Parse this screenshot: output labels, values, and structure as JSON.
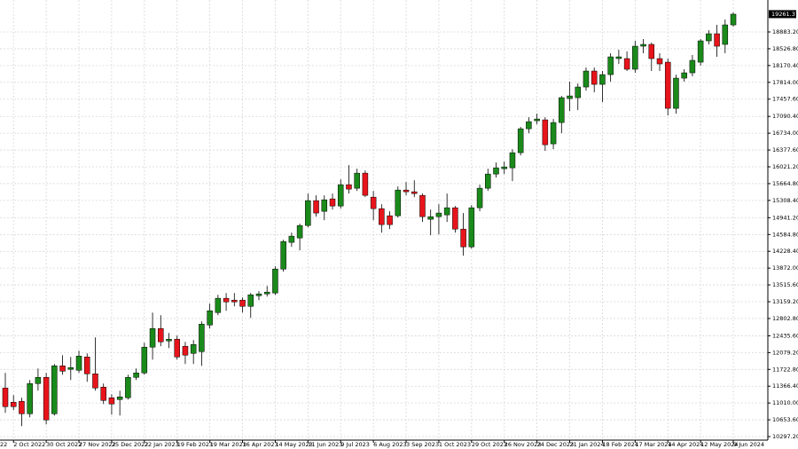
{
  "chart_data": {
    "type": "candlestick",
    "partial_label": "22",
    "categories": [
      null,
      "2 Oct 2022",
      null,
      null,
      null,
      "30 Oct 2022",
      null,
      null,
      null,
      "27 Nov 2022",
      null,
      null,
      null,
      "25 Dec 2022",
      null,
      null,
      null,
      "22 Jan 2023",
      null,
      null,
      null,
      "19 Feb 2023",
      null,
      null,
      null,
      "19 Mar 2023",
      null,
      null,
      null,
      "16 Apr 2023",
      null,
      null,
      null,
      "14 May 2023",
      null,
      null,
      null,
      "11 Jun 2023",
      null,
      null,
      null,
      "9 Jul 2023",
      null,
      null,
      null,
      "6 Aug 2023",
      null,
      null,
      null,
      "3 Sep 2023",
      null,
      null,
      null,
      "1 Oct 2023",
      null,
      null,
      null,
      "29 Oct 2023",
      null,
      null,
      null,
      "26 Nov 2023",
      null,
      null,
      null,
      "24 Dec 2023",
      null,
      null,
      null,
      "21 Jan 2024",
      null,
      null,
      null,
      "18 Feb 2024",
      null,
      null,
      null,
      "17 Mar 2024",
      null,
      null,
      null,
      "14 Apr 2024",
      null,
      null,
      null,
      "12 May 2024",
      null,
      null,
      null,
      "9 Jun 2024"
    ],
    "open": [
      11328,
      11027,
      11045,
      10781,
      11422,
      11554,
      10781,
      11799,
      11724,
      11705,
      11987,
      11629,
      11347,
      11121,
      11083,
      11121,
      11554,
      11648,
      12195,
      12590,
      12327,
      12364,
      12214,
      12063,
      12100,
      12665,
      12929,
      13232,
      13193,
      13193,
      13061,
      13287,
      13325,
      13344,
      13852,
      14418,
      14512,
      14776,
      15304,
      15077,
      15341,
      15190,
      15642,
      15567,
      15887,
      15378,
      15134,
      14983,
      14983,
      15529,
      15492,
      15416,
      14908,
      14964,
      15002,
      15153,
      14700,
      14323,
      15153,
      15567,
      15868,
      15981,
      16000,
      16321,
      16829,
      16999,
      17018,
      16509,
      16961,
      17470,
      17489,
      17715,
      18054,
      17771,
      17978,
      18318,
      18318,
      18092,
      18581,
      18619,
      18318,
      18242,
      17262,
      17903,
      18016,
      18242,
      18694,
      18845,
      18619,
      19033
    ],
    "high": [
      11648,
      11177,
      11121,
      11497,
      11742,
      11648,
      11837,
      12025,
      11987,
      12119,
      12063,
      12402,
      11422,
      11196,
      11271,
      11610,
      11742,
      12289,
      12929,
      12873,
      12496,
      12440,
      12308,
      12345,
      12741,
      13118,
      13306,
      13344,
      13344,
      13249,
      13344,
      13382,
      13494,
      13909,
      14474,
      14625,
      14814,
      15454,
      15416,
      15416,
      15454,
      15755,
      16057,
      15981,
      15944,
      15510,
      15228,
      15077,
      15604,
      15699,
      15736,
      15454,
      15115,
      15228,
      15454,
      15190,
      15040,
      15209,
      15642,
      15981,
      16113,
      16132,
      16396,
      16867,
      17074,
      17149,
      17074,
      17036,
      17526,
      17828,
      17790,
      18129,
      18129,
      18054,
      18431,
      18506,
      18468,
      18694,
      18732,
      18657,
      18431,
      18318,
      17978,
      18092,
      18393,
      18732,
      18920,
      19033,
      19147,
      19297
    ],
    "low": [
      10800,
      10857,
      10518,
      10706,
      11271,
      10556,
      10744,
      11610,
      11497,
      11648,
      11460,
      11271,
      10989,
      10763,
      10744,
      11083,
      11497,
      11610,
      11931,
      12214,
      12176,
      11931,
      11837,
      11837,
      11799,
      12590,
      12873,
      12967,
      13061,
      12929,
      12816,
      13193,
      13268,
      13306,
      13796,
      14323,
      14248,
      14738,
      14964,
      14889,
      15115,
      15134,
      15454,
      15510,
      15378,
      14889,
      14625,
      14700,
      14945,
      15416,
      15378,
      14851,
      14568,
      14587,
      14851,
      14625,
      14135,
      14286,
      15077,
      15510,
      15793,
      15868,
      15718,
      16264,
      16735,
      16923,
      16358,
      16396,
      16735,
      17206,
      17225,
      17639,
      17602,
      17394,
      17828,
      18205,
      18054,
      18016,
      18431,
      18054,
      18054,
      17112,
      17149,
      17828,
      17941,
      18167,
      18619,
      18355,
      18431,
      18996
    ],
    "close": [
      10932,
      10932,
      10781,
      11422,
      11554,
      10650,
      11799,
      11686,
      11761,
      12006,
      11629,
      11328,
      11064,
      10989,
      11140,
      11554,
      11648,
      12195,
      12590,
      12308,
      12364,
      11987,
      12025,
      12251,
      12684,
      12967,
      13232,
      13155,
      13155,
      13061,
      13306,
      13325,
      13363,
      13852,
      14437,
      14550,
      14776,
      15304,
      15040,
      15322,
      15190,
      15642,
      15548,
      15887,
      15416,
      15134,
      14795,
      14795,
      15529,
      15492,
      15454,
      14964,
      14964,
      15040,
      15153,
      14700,
      14323,
      15153,
      15567,
      15868,
      16000,
      16019,
      16321,
      16829,
      16980,
      17036,
      16490,
      16961,
      17489,
      17526,
      17715,
      18054,
      17771,
      17978,
      18355,
      18355,
      18092,
      18581,
      18619,
      18318,
      18205,
      17262,
      17903,
      18016,
      18280,
      18694,
      18845,
      18581,
      19033,
      19260
    ],
    "up_color": "#1a8a1a",
    "down_color": "#e8141b",
    "ylim": [
      10222,
      19561
    ],
    "yticks": [
      {
        "value": 10297.2,
        "label": "10297.20"
      },
      {
        "value": 10653.6,
        "label": "10653.60"
      },
      {
        "value": 11010,
        "label": "11010.00"
      },
      {
        "value": 11366.4,
        "label": "11366.40"
      },
      {
        "value": 11722.8,
        "label": "11722.80"
      },
      {
        "value": 12079.2,
        "label": "12079.20"
      },
      {
        "value": 12435.6,
        "label": "12435.60"
      },
      {
        "value": 12802.8,
        "label": "12802.80"
      },
      {
        "value": 13159.2,
        "label": "13159.20"
      },
      {
        "value": 13515.6,
        "label": "13515.60"
      },
      {
        "value": 13872,
        "label": "13872.00"
      },
      {
        "value": 14228.4,
        "label": "14228.40"
      },
      {
        "value": 14584.8,
        "label": "14584.80"
      },
      {
        "value": 14941.2,
        "label": "14941.20"
      },
      {
        "value": 15308.4,
        "label": "15308.40"
      },
      {
        "value": 15664.8,
        "label": "15664.80"
      },
      {
        "value": 16021.2,
        "label": "16021.20"
      },
      {
        "value": 16377.6,
        "label": "16377.60"
      },
      {
        "value": 16734,
        "label": "16734.00"
      },
      {
        "value": 17090.4,
        "label": "17090.40"
      },
      {
        "value": 17457.6,
        "label": "17457.60"
      },
      {
        "value": 17814,
        "label": "17814.00"
      },
      {
        "value": 18170.4,
        "label": "18170.40"
      },
      {
        "value": 18526.8,
        "label": "18526.80"
      },
      {
        "value": 18883.2,
        "label": "18883.20"
      }
    ],
    "last_price": {
      "value": 19261.37,
      "label": "19261.37"
    },
    "grid": true
  }
}
